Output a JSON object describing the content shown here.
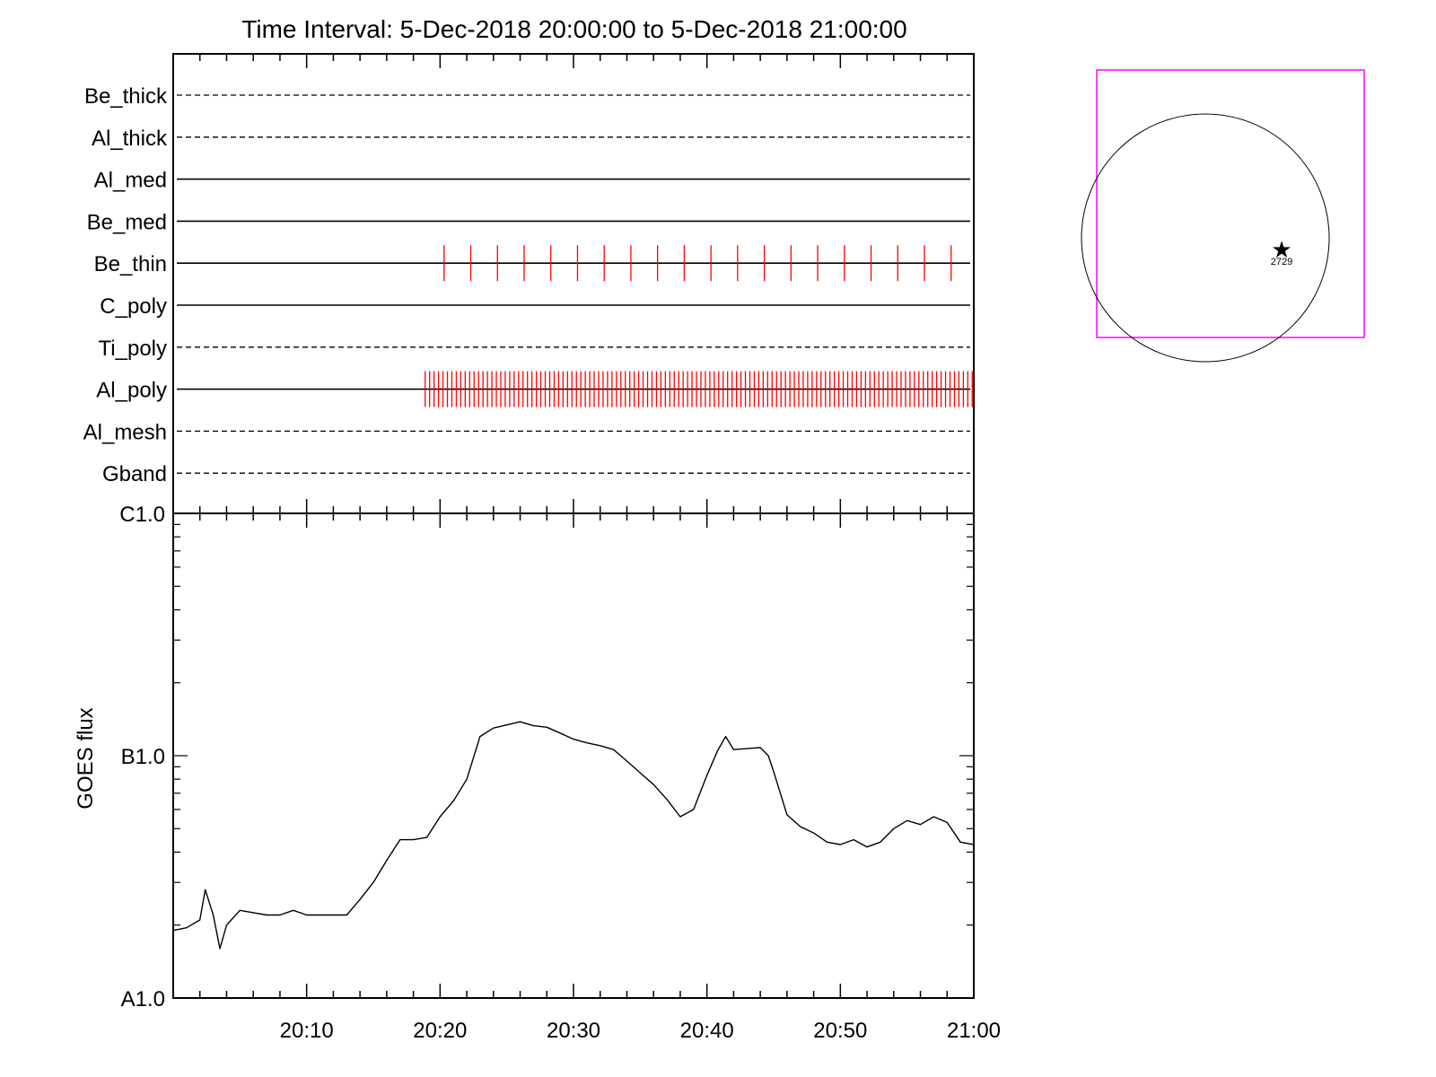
{
  "chart_data": [
    {
      "type": "timeline",
      "title": "Time Interval:  5-Dec-2018 20:00:00 to  5-Dec-2018 21:00:00",
      "x_range": [
        "20:00",
        "21:00"
      ],
      "x_minor_tick_minutes": 2,
      "x_major_tick_minutes": 10,
      "channels": [
        {
          "name": "Be_thick",
          "line": "dashed",
          "events": []
        },
        {
          "name": "Al_thick",
          "line": "dashed",
          "events": []
        },
        {
          "name": "Al_med",
          "line": "solid",
          "events": []
        },
        {
          "name": "Be_med",
          "line": "solid",
          "events": []
        },
        {
          "name": "Be_thin",
          "line": "solid",
          "events": [
            "20:20:18",
            "20:22:18",
            "20:24:18",
            "20:26:18",
            "20:28:18",
            "20:30:18",
            "20:32:18",
            "20:34:18",
            "20:36:18",
            "20:38:18",
            "20:40:18",
            "20:42:18",
            "20:44:18",
            "20:46:18",
            "20:48:18",
            "20:50:18",
            "20:52:18",
            "20:54:18",
            "20:56:18",
            "20:58:18"
          ]
        },
        {
          "name": "C_poly",
          "line": "solid",
          "events": []
        },
        {
          "name": "Ti_poly",
          "line": "dashed",
          "events": []
        },
        {
          "name": "Al_poly",
          "line": "solid",
          "event_span": [
            "20:18:53",
            "21:00:00"
          ],
          "event_spacing_seconds": 20
        },
        {
          "name": "Al_mesh",
          "line": "dashed",
          "events": []
        },
        {
          "name": "Gband",
          "line": "dashed",
          "events": []
        }
      ],
      "event_color": "#ff0000"
    },
    {
      "type": "line",
      "xlabel": "",
      "ylabel": "GOES flux",
      "x_range": [
        "20:00",
        "21:00"
      ],
      "x_tick_labels": [
        "20:10",
        "20:20",
        "20:30",
        "20:40",
        "20:50",
        "21:00"
      ],
      "y_scale": "log",
      "y_range": [
        1e-08,
        1e-06
      ],
      "y_tick_labels": [
        {
          "label": "A1.0",
          "value": 1e-08
        },
        {
          "label": "B1.0",
          "value": 1e-07
        },
        {
          "label": "C1.0",
          "value": 1e-06
        }
      ],
      "series": [
        {
          "x_minutes": [
            0.0,
            1.0,
            2.0,
            2.4,
            3.0,
            3.5,
            4.0,
            5.0,
            6.0,
            7.0,
            8.0,
            9.0,
            10.0,
            11.0,
            12.0,
            13.0,
            14.0,
            15.0,
            16.0,
            17.0,
            18.0,
            19.0,
            20.0,
            21.0,
            22.0,
            23.0,
            24.0,
            25.0,
            26.0,
            27.0,
            28.0,
            29.0,
            30.0,
            31.0,
            32.0,
            33.0,
            34.0,
            35.0,
            36.0,
            37.0,
            38.0,
            39.0,
            40.0,
            40.8,
            41.4,
            42.0,
            43.0,
            44.0,
            44.6,
            45.0,
            46.0,
            47.0,
            48.0,
            49.0,
            50.0,
            51.0,
            52.0,
            53.0,
            54.0,
            55.0,
            56.0,
            57.0,
            58.0,
            59.0,
            60.0
          ],
          "y": [
            1.9e-08,
            1.95e-08,
            2.1e-08,
            2.8e-08,
            2.2e-08,
            1.6e-08,
            2e-08,
            2.3e-08,
            2.25e-08,
            2.2e-08,
            2.2e-08,
            2.3e-08,
            2.2e-08,
            2.2e-08,
            2.2e-08,
            2.2e-08,
            2.55e-08,
            3e-08,
            3.7e-08,
            4.5e-08,
            4.5e-08,
            4.6e-08,
            5.6e-08,
            6.5e-08,
            8e-08,
            1.2e-07,
            1.3e-07,
            1.34e-07,
            1.38e-07,
            1.33e-07,
            1.31e-07,
            1.24e-07,
            1.17e-07,
            1.13e-07,
            1.1e-07,
            1.06e-07,
            9.5e-08,
            8.5e-08,
            7.6e-08,
            6.6e-08,
            5.6e-08,
            6e-08,
            8.3e-08,
            1.05e-07,
            1.2e-07,
            1.06e-07,
            1.07e-07,
            1.08e-07,
            1e-07,
            8.6e-08,
            5.7e-08,
            5.1e-08,
            4.8e-08,
            4.4e-08,
            4.3e-08,
            4.5e-08,
            4.2e-08,
            4.4e-08,
            5e-08,
            5.4e-08,
            5.2e-08,
            5.6e-08,
            5.3e-08,
            4.4e-08,
            4.3e-08
          ]
        }
      ]
    },
    {
      "type": "scatter",
      "note_label": "2729",
      "marker_color": "#ff0000",
      "box_color": "#ff00ff"
    }
  ]
}
